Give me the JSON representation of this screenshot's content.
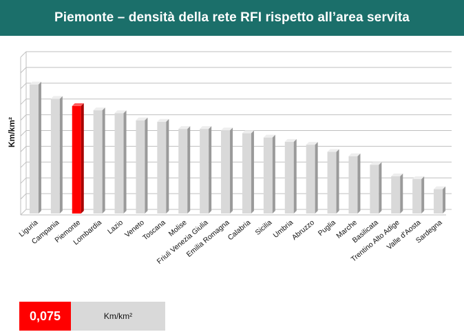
{
  "header": {
    "title": "Piemonte – densità della rete RFI rispetto all’area servita"
  },
  "chart_data": {
    "type": "bar",
    "title": "Piemonte – densità della rete RFI rispetto all’area servita",
    "ylabel": "Km/km²",
    "xlabel": "",
    "grid": true,
    "ylim": [
      0,
      0.11
    ],
    "highlight": "Piemonte",
    "colors": {
      "bar": "#d9d9d9",
      "highlight": "#ff0000",
      "grid": "#bfbfbf"
    },
    "categories": [
      "Liguria",
      "Campania",
      "Piemonte",
      "Lombardia",
      "Lazio",
      "Veneto",
      "Toscana",
      "Molise",
      "Friuli Venezia Giulia",
      "Emilia Romagna",
      "Calabria",
      "Sicilia",
      "Umbria",
      "Abruzzo",
      "Puglia",
      "Marche",
      "Basilicata",
      "Trentino Alto Adige",
      "Valle d'Aosta",
      "Sardegna"
    ],
    "values": [
      0.09,
      0.08,
      0.075,
      0.072,
      0.07,
      0.065,
      0.064,
      0.059,
      0.059,
      0.058,
      0.056,
      0.053,
      0.05,
      0.048,
      0.043,
      0.04,
      0.034,
      0.026,
      0.024,
      0.017
    ]
  },
  "legend": {
    "value": "0,075",
    "unit": "Km/km²"
  }
}
